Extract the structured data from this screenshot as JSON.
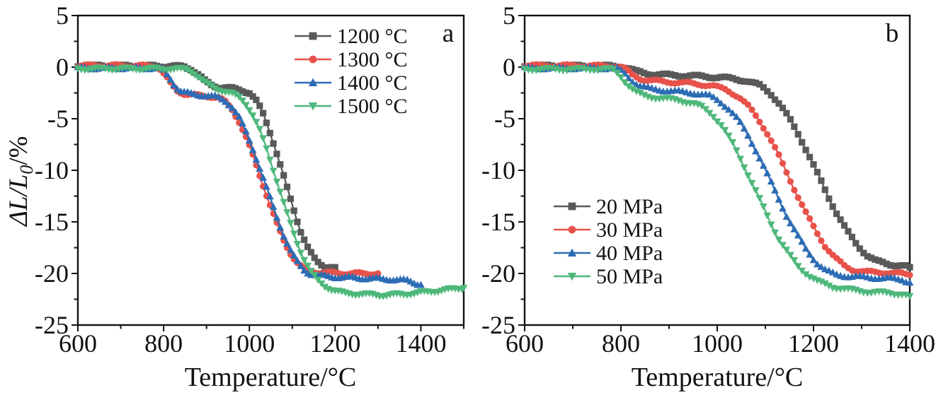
{
  "figure_title": "",
  "chart_data": [
    {
      "type": "line",
      "panel_label": "a",
      "xlabel": "Temperature/°C",
      "ylabel": "ΔL/L0/%",
      "ylabel_parts": {
        "pre": "ΔL/L",
        "sub": "0",
        "post": "/%"
      },
      "xlim": [
        600,
        1500
      ],
      "ylim": [
        -25,
        5
      ],
      "x_major_ticks": [
        600,
        800,
        1000,
        1200,
        1400
      ],
      "x_minor_step": 100,
      "y_major_ticks": [
        5,
        0,
        -5,
        -10,
        -15,
        -20,
        -25
      ],
      "y_minor_step": 2.5,
      "grid": false,
      "legend_position": "upper-right-inside",
      "series": [
        {
          "label": "1200 °C",
          "color": "#595959",
          "marker": "square",
          "points": [
            [
              600,
              0.1
            ],
            [
              700,
              0.1
            ],
            [
              800,
              0.1
            ],
            [
              850,
              0.05
            ],
            [
              865,
              -0.2
            ],
            [
              880,
              -0.7
            ],
            [
              895,
              -1.3
            ],
            [
              910,
              -1.7
            ],
            [
              930,
              -1.95
            ],
            [
              955,
              -2.05
            ],
            [
              980,
              -2.2
            ],
            [
              1000,
              -2.5
            ],
            [
              1015,
              -3.2
            ],
            [
              1030,
              -4.3
            ],
            [
              1045,
              -5.9
            ],
            [
              1060,
              -7.8
            ],
            [
              1075,
              -9.9
            ],
            [
              1090,
              -12.0
            ],
            [
              1105,
              -14.0
            ],
            [
              1120,
              -15.9
            ],
            [
              1135,
              -17.4
            ],
            [
              1150,
              -18.5
            ],
            [
              1162,
              -19.0
            ],
            [
              1175,
              -19.3
            ],
            [
              1200,
              -19.4
            ]
          ]
        },
        {
          "label": "1300 °C",
          "color": "#e8524a",
          "marker": "circle",
          "points": [
            [
              600,
              0.15
            ],
            [
              700,
              0.15
            ],
            [
              780,
              0.1
            ],
            [
              792,
              -0.2
            ],
            [
              805,
              -0.9
            ],
            [
              818,
              -1.7
            ],
            [
              832,
              -2.3
            ],
            [
              850,
              -2.6
            ],
            [
              880,
              -2.75
            ],
            [
              910,
              -2.85
            ],
            [
              930,
              -3.0
            ],
            [
              945,
              -3.4
            ],
            [
              960,
              -4.1
            ],
            [
              975,
              -5.2
            ],
            [
              990,
              -6.6
            ],
            [
              1005,
              -8.2
            ],
            [
              1020,
              -10.0
            ],
            [
              1035,
              -11.8
            ],
            [
              1050,
              -13.6
            ],
            [
              1065,
              -15.3
            ],
            [
              1080,
              -16.8
            ],
            [
              1095,
              -18.0
            ],
            [
              1110,
              -18.9
            ],
            [
              1125,
              -19.5
            ],
            [
              1140,
              -19.8
            ],
            [
              1170,
              -19.9
            ],
            [
              1230,
              -20.0
            ],
            [
              1300,
              -20.0
            ]
          ]
        },
        {
          "label": "1400 °C",
          "color": "#2c6cb5",
          "marker": "triangle-up",
          "points": [
            [
              600,
              -0.1
            ],
            [
              700,
              -0.1
            ],
            [
              790,
              -0.1
            ],
            [
              802,
              -0.4
            ],
            [
              815,
              -1.1
            ],
            [
              828,
              -1.9
            ],
            [
              842,
              -2.4
            ],
            [
              865,
              -2.6
            ],
            [
              895,
              -2.75
            ],
            [
              925,
              -2.9
            ],
            [
              945,
              -3.3
            ],
            [
              960,
              -3.9
            ],
            [
              975,
              -4.8
            ],
            [
              990,
              -6.1
            ],
            [
              1005,
              -7.6
            ],
            [
              1020,
              -9.3
            ],
            [
              1035,
              -11.1
            ],
            [
              1050,
              -12.9
            ],
            [
              1065,
              -14.7
            ],
            [
              1080,
              -16.3
            ],
            [
              1095,
              -17.7
            ],
            [
              1110,
              -18.8
            ],
            [
              1125,
              -19.6
            ],
            [
              1140,
              -20.0
            ],
            [
              1160,
              -20.2
            ],
            [
              1200,
              -20.35
            ],
            [
              1260,
              -20.45
            ],
            [
              1320,
              -20.55
            ],
            [
              1370,
              -20.7
            ],
            [
              1400,
              -21.1
            ]
          ]
        },
        {
          "label": "1500 °C",
          "color": "#4eb87b",
          "marker": "triangle-down",
          "points": [
            [
              600,
              -0.15
            ],
            [
              700,
              -0.15
            ],
            [
              800,
              -0.15
            ],
            [
              855,
              -0.2
            ],
            [
              870,
              -0.5
            ],
            [
              885,
              -1.1
            ],
            [
              900,
              -1.6
            ],
            [
              918,
              -2.0
            ],
            [
              940,
              -2.3
            ],
            [
              962,
              -2.6
            ],
            [
              980,
              -3.0
            ],
            [
              995,
              -3.7
            ],
            [
              1010,
              -4.8
            ],
            [
              1025,
              -6.2
            ],
            [
              1040,
              -7.9
            ],
            [
              1055,
              -9.8
            ],
            [
              1070,
              -11.8
            ],
            [
              1085,
              -13.8
            ],
            [
              1100,
              -15.7
            ],
            [
              1115,
              -17.4
            ],
            [
              1130,
              -18.8
            ],
            [
              1145,
              -19.9
            ],
            [
              1160,
              -20.7
            ],
            [
              1175,
              -21.2
            ],
            [
              1195,
              -21.6
            ],
            [
              1220,
              -21.9
            ],
            [
              1260,
              -22.0
            ],
            [
              1310,
              -22.1
            ],
            [
              1360,
              -22.0
            ],
            [
              1410,
              -21.8
            ],
            [
              1455,
              -21.6
            ],
            [
              1500,
              -21.4
            ]
          ]
        }
      ]
    },
    {
      "type": "line",
      "panel_label": "b",
      "xlabel": "Temperature/°C",
      "ylabel": "ΔL/L0/%",
      "ylabel_parts": {
        "pre": "ΔL/L",
        "sub": "0",
        "post": "/%"
      },
      "xlim": [
        600,
        1400
      ],
      "ylim": [
        -25,
        5
      ],
      "x_major_ticks": [
        600,
        800,
        1000,
        1200,
        1400
      ],
      "x_minor_step": 100,
      "y_major_ticks": [
        5,
        0,
        -5,
        -10,
        -15,
        -20,
        -25
      ],
      "y_minor_step": 2.5,
      "grid": false,
      "legend_position": "middle-left-inside",
      "series": [
        {
          "label": "20 MPa",
          "color": "#595959",
          "marker": "square",
          "points": [
            [
              600,
              0.1
            ],
            [
              700,
              0.1
            ],
            [
              800,
              0.1
            ],
            [
              815,
              -0.1
            ],
            [
              830,
              -0.4
            ],
            [
              850,
              -0.6
            ],
            [
              890,
              -0.75
            ],
            [
              950,
              -0.85
            ],
            [
              1010,
              -1.0
            ],
            [
              1060,
              -1.3
            ],
            [
              1090,
              -1.8
            ],
            [
              1110,
              -2.5
            ],
            [
              1130,
              -3.6
            ],
            [
              1150,
              -5.0
            ],
            [
              1170,
              -6.6
            ],
            [
              1190,
              -8.5
            ],
            [
              1210,
              -10.5
            ],
            [
              1230,
              -12.5
            ],
            [
              1250,
              -14.3
            ],
            [
              1270,
              -15.9
            ],
            [
              1290,
              -17.2
            ],
            [
              1310,
              -18.2
            ],
            [
              1330,
              -18.8
            ],
            [
              1355,
              -19.1
            ],
            [
              1380,
              -19.2
            ],
            [
              1400,
              -19.4
            ]
          ]
        },
        {
          "label": "30 MPa",
          "color": "#e8524a",
          "marker": "circle",
          "points": [
            [
              600,
              0.15
            ],
            [
              700,
              0.15
            ],
            [
              795,
              0.1
            ],
            [
              810,
              -0.2
            ],
            [
              825,
              -0.8
            ],
            [
              845,
              -1.2
            ],
            [
              885,
              -1.4
            ],
            [
              940,
              -1.55
            ],
            [
              990,
              -1.8
            ],
            [
              1020,
              -2.2
            ],
            [
              1045,
              -2.9
            ],
            [
              1065,
              -3.8
            ],
            [
              1085,
              -5.0
            ],
            [
              1105,
              -6.5
            ],
            [
              1125,
              -8.3
            ],
            [
              1145,
              -10.3
            ],
            [
              1165,
              -12.3
            ],
            [
              1185,
              -14.2
            ],
            [
              1205,
              -15.9
            ],
            [
              1225,
              -17.4
            ],
            [
              1245,
              -18.5
            ],
            [
              1265,
              -19.3
            ],
            [
              1285,
              -19.7
            ],
            [
              1310,
              -19.85
            ],
            [
              1350,
              -19.9
            ],
            [
              1380,
              -20.0
            ],
            [
              1400,
              -20.15
            ]
          ]
        },
        {
          "label": "40 MPa",
          "color": "#2c6cb5",
          "marker": "triangle-up",
          "points": [
            [
              600,
              -0.1
            ],
            [
              700,
              -0.1
            ],
            [
              790,
              -0.1
            ],
            [
              805,
              -0.5
            ],
            [
              820,
              -1.2
            ],
            [
              838,
              -1.8
            ],
            [
              860,
              -2.1
            ],
            [
              900,
              -2.3
            ],
            [
              950,
              -2.5
            ],
            [
              985,
              -2.8
            ],
            [
              1005,
              -3.3
            ],
            [
              1025,
              -4.1
            ],
            [
              1045,
              -5.2
            ],
            [
              1065,
              -6.7
            ],
            [
              1085,
              -8.5
            ],
            [
              1105,
              -10.5
            ],
            [
              1125,
              -12.5
            ],
            [
              1145,
              -14.5
            ],
            [
              1165,
              -16.2
            ],
            [
              1185,
              -17.7
            ],
            [
              1205,
              -18.9
            ],
            [
              1225,
              -19.7
            ],
            [
              1245,
              -20.1
            ],
            [
              1275,
              -20.3
            ],
            [
              1320,
              -20.4
            ],
            [
              1360,
              -20.5
            ],
            [
              1385,
              -20.6
            ],
            [
              1400,
              -20.9
            ]
          ]
        },
        {
          "label": "50 MPa",
          "color": "#4eb87b",
          "marker": "triangle-down",
          "points": [
            [
              600,
              -0.2
            ],
            [
              700,
              -0.2
            ],
            [
              782,
              -0.2
            ],
            [
              797,
              -0.7
            ],
            [
              812,
              -1.6
            ],
            [
              830,
              -2.4
            ],
            [
              850,
              -2.8
            ],
            [
              880,
              -3.0
            ],
            [
              920,
              -3.2
            ],
            [
              950,
              -3.5
            ],
            [
              970,
              -3.9
            ],
            [
              990,
              -4.6
            ],
            [
              1010,
              -5.7
            ],
            [
              1030,
              -7.2
            ],
            [
              1050,
              -9.0
            ],
            [
              1070,
              -11.0
            ],
            [
              1090,
              -13.0
            ],
            [
              1110,
              -15.0
            ],
            [
              1130,
              -16.8
            ],
            [
              1150,
              -18.2
            ],
            [
              1170,
              -19.4
            ],
            [
              1190,
              -20.2
            ],
            [
              1210,
              -20.8
            ],
            [
              1240,
              -21.3
            ],
            [
              1280,
              -21.6
            ],
            [
              1320,
              -21.8
            ],
            [
              1360,
              -21.9
            ],
            [
              1385,
              -22.0
            ],
            [
              1400,
              -22.2
            ]
          ]
        }
      ]
    }
  ]
}
